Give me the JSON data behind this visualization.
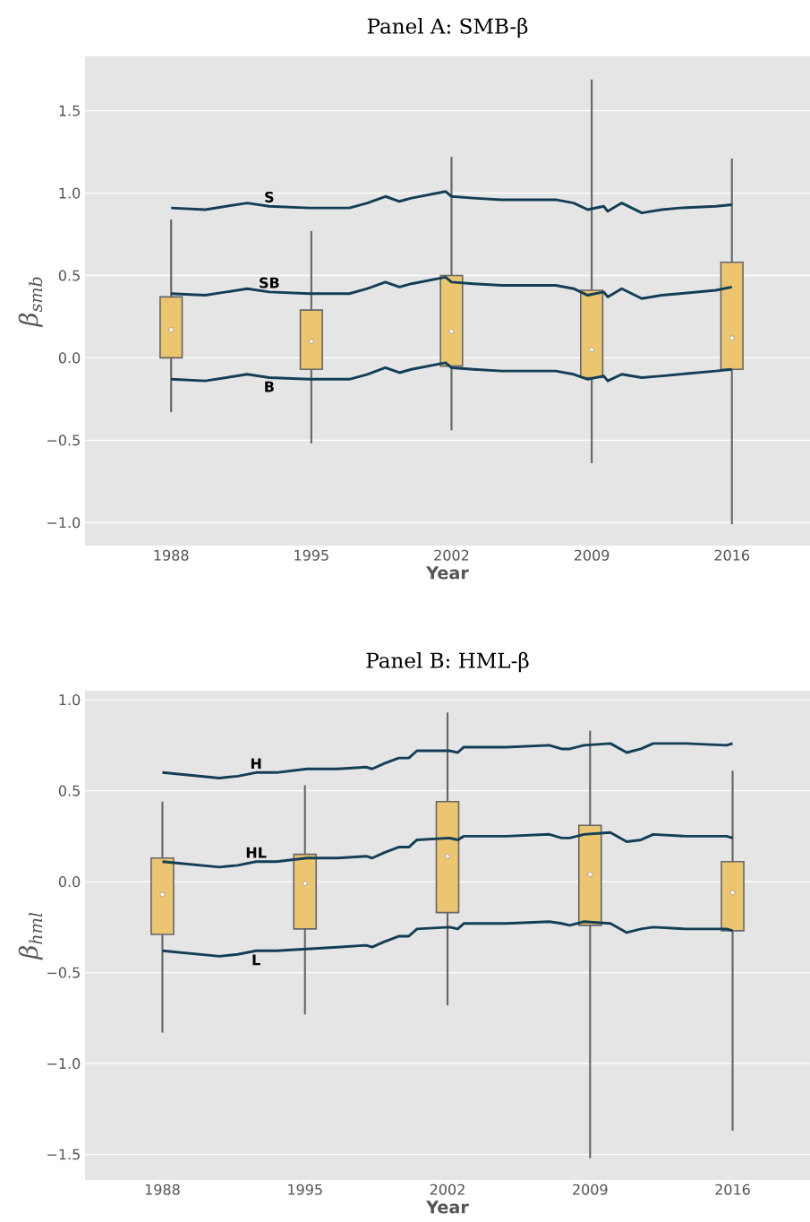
{
  "chart_data": [
    {
      "type": "box",
      "title": "Panel A: SMB-β",
      "xlabel": "Year",
      "ylabel": "β$_{smb}$",
      "xlim": [
        1983.7,
        2019.9
      ],
      "ylim": [
        -1.14,
        1.83
      ],
      "xticks": [
        1988,
        1995,
        2002,
        2009,
        2016
      ],
      "yticks": [
        {
          "value": -1.0,
          "label": "−1.0"
        },
        {
          "value": -0.5,
          "label": "−0.5"
        },
        {
          "value": 0.0,
          "label": "0.0"
        },
        {
          "value": 0.5,
          "label": "0.5"
        },
        {
          "value": 1.0,
          "label": "1.0"
        },
        {
          "value": 1.5,
          "label": "1.5"
        }
      ],
      "grid": "y",
      "series": [
        {
          "color": "#ecc571",
          "x": [
            1988,
            1995,
            2002,
            2009,
            2016
          ],
          "boxes": [
            {
              "low": -0.33,
              "q1": 0.0,
              "median": 0.17,
              "q3": 0.37,
              "high": 0.84
            },
            {
              "low": -0.52,
              "q1": -0.07,
              "median": 0.1,
              "q3": 0.29,
              "high": 0.77
            },
            {
              "low": -0.44,
              "q1": -0.05,
              "median": 0.16,
              "q3": 0.5,
              "high": 1.22
            },
            {
              "low": -0.64,
              "q1": -0.12,
              "median": 0.05,
              "q3": 0.41,
              "high": 1.69
            },
            {
              "low": -1.01,
              "q1": -0.07,
              "median": 0.12,
              "q3": 0.58,
              "high": 1.21
            }
          ]
        },
        {
          "type": "line",
          "name": "S",
          "color": "#133e55",
          "x": [
            1988,
            1989.7,
            1991.8,
            1992.9,
            1994.9,
            1996.9,
            1997.8,
            1998.7,
            1999.4,
            2000.0,
            2001.7,
            2002.0,
            2003.1,
            2004.5,
            2006.3,
            2007.2,
            2008.1,
            2008.8,
            2009.6,
            2009.8,
            2010.5,
            2011.5,
            2012.5,
            2013.4,
            2015.2,
            2016
          ],
          "values": [
            0.91,
            0.9,
            0.94,
            0.92,
            0.91,
            0.91,
            0.94,
            0.98,
            0.95,
            0.97,
            1.01,
            0.98,
            0.97,
            0.96,
            0.96,
            0.96,
            0.94,
            0.9,
            0.92,
            0.89,
            0.94,
            0.88,
            0.9,
            0.91,
            0.92,
            0.93
          ]
        },
        {
          "type": "line",
          "name": "SB",
          "color": "#133e55",
          "x": [
            1988,
            1989.7,
            1991.8,
            1992.9,
            1994.9,
            1996.9,
            1997.8,
            1998.7,
            1999.4,
            2000.0,
            2001.7,
            2002.0,
            2003.1,
            2004.5,
            2006.3,
            2007.2,
            2008.1,
            2008.8,
            2009.6,
            2009.8,
            2010.5,
            2011.5,
            2012.5,
            2013.4,
            2015.2,
            2016
          ],
          "values": [
            0.39,
            0.38,
            0.42,
            0.4,
            0.39,
            0.39,
            0.42,
            0.46,
            0.43,
            0.45,
            0.49,
            0.46,
            0.45,
            0.44,
            0.44,
            0.44,
            0.42,
            0.38,
            0.4,
            0.37,
            0.42,
            0.36,
            0.38,
            0.39,
            0.41,
            0.43
          ]
        },
        {
          "type": "line",
          "name": "B",
          "color": "#133e55",
          "x": [
            1988,
            1989.7,
            1991.8,
            1992.9,
            1994.9,
            1996.9,
            1997.8,
            1998.7,
            1999.4,
            2000.0,
            2001.7,
            2002.0,
            2003.1,
            2004.5,
            2006.3,
            2007.2,
            2008.1,
            2008.8,
            2009.6,
            2009.8,
            2010.5,
            2011.5,
            2012.5,
            2013.4,
            2015.2,
            2016
          ],
          "values": [
            -0.13,
            -0.14,
            -0.1,
            -0.12,
            -0.13,
            -0.13,
            -0.1,
            -0.06,
            -0.09,
            -0.07,
            -0.03,
            -0.06,
            -0.07,
            -0.08,
            -0.08,
            -0.08,
            -0.1,
            -0.13,
            -0.11,
            -0.14,
            -0.1,
            -0.12,
            -0.11,
            -0.1,
            -0.08,
            -0.07
          ]
        }
      ]
    },
    {
      "type": "box",
      "title": "Panel B: HML-β",
      "xlabel": "Year",
      "ylabel": "β$_{hml}$",
      "xlim": [
        1984.2,
        2019.8
      ],
      "ylim": [
        -1.64,
        1.05
      ],
      "xticks": [
        1988,
        1995,
        2002,
        2009,
        2016
      ],
      "yticks": [
        {
          "value": -1.5,
          "label": "−1.5"
        },
        {
          "value": -1.0,
          "label": "−1.0"
        },
        {
          "value": -0.5,
          "label": "−0.5"
        },
        {
          "value": 0.0,
          "label": "0.0"
        },
        {
          "value": 0.5,
          "label": "0.5"
        },
        {
          "value": 1.0,
          "label": "1.0"
        }
      ],
      "grid": "y",
      "series": [
        {
          "color": "#ecc571",
          "x": [
            1988,
            1995,
            2002,
            2009,
            2016
          ],
          "boxes": [
            {
              "low": -0.83,
              "q1": -0.29,
              "median": -0.07,
              "q3": 0.13,
              "high": 0.44
            },
            {
              "low": -0.73,
              "q1": -0.26,
              "median": -0.01,
              "q3": 0.15,
              "high": 0.53
            },
            {
              "low": -0.68,
              "q1": -0.17,
              "median": 0.14,
              "q3": 0.44,
              "high": 0.93
            },
            {
              "low": -1.52,
              "q1": -0.24,
              "median": 0.04,
              "q3": 0.31,
              "high": 0.83
            },
            {
              "low": -1.37,
              "q1": -0.27,
              "median": -0.06,
              "q3": 0.11,
              "high": 0.61
            }
          ]
        },
        {
          "type": "line",
          "name": "H",
          "color": "#133e55",
          "x": [
            1988,
            1990.8,
            1991.7,
            1992.6,
            1993.6,
            1995.1,
            1996.6,
            1998.0,
            1998.3,
            1998.9,
            1999.6,
            2000.1,
            2000.5,
            2002.1,
            2002.5,
            2002.8,
            2004.9,
            2007.0,
            2007.6,
            2008.0,
            2008.7,
            2010.0,
            2010.8,
            2011.5,
            2012.1,
            2013.7,
            2015.7,
            2016
          ],
          "values": [
            0.6,
            0.57,
            0.58,
            0.6,
            0.6,
            0.62,
            0.62,
            0.63,
            0.62,
            0.65,
            0.68,
            0.68,
            0.72,
            0.72,
            0.71,
            0.74,
            0.74,
            0.75,
            0.73,
            0.73,
            0.75,
            0.76,
            0.71,
            0.73,
            0.76,
            0.76,
            0.75,
            0.76
          ]
        },
        {
          "type": "line",
          "name": "HL",
          "color": "#133e55",
          "x": [
            1988,
            1990.8,
            1991.7,
            1992.6,
            1993.6,
            1995.1,
            1996.6,
            1998.0,
            1998.3,
            1998.9,
            1999.6,
            2000.1,
            2000.5,
            2002.1,
            2002.5,
            2002.8,
            2004.9,
            2007.0,
            2007.6,
            2008.0,
            2008.7,
            2010.0,
            2010.8,
            2011.5,
            2012.1,
            2013.7,
            2015.7,
            2016
          ],
          "values": [
            0.11,
            0.08,
            0.09,
            0.11,
            0.11,
            0.13,
            0.13,
            0.14,
            0.13,
            0.16,
            0.19,
            0.19,
            0.23,
            0.24,
            0.23,
            0.25,
            0.25,
            0.26,
            0.24,
            0.24,
            0.26,
            0.27,
            0.22,
            0.23,
            0.26,
            0.25,
            0.25,
            0.24
          ]
        },
        {
          "type": "line",
          "name": "L",
          "color": "#133e55",
          "x": [
            1988,
            1990.8,
            1991.7,
            1992.6,
            1993.6,
            1995.1,
            1996.6,
            1998.0,
            1998.3,
            1998.9,
            1999.6,
            2000.1,
            2000.5,
            2002.1,
            2002.5,
            2002.8,
            2004.9,
            2007.0,
            2007.6,
            2008.0,
            2008.7,
            2010.0,
            2010.8,
            2011.5,
            2012.1,
            2013.7,
            2015.7,
            2016
          ],
          "values": [
            -0.38,
            -0.41,
            -0.4,
            -0.38,
            -0.38,
            -0.37,
            -0.36,
            -0.35,
            -0.36,
            -0.33,
            -0.3,
            -0.3,
            -0.26,
            -0.25,
            -0.26,
            -0.23,
            -0.23,
            -0.22,
            -0.23,
            -0.24,
            -0.22,
            -0.23,
            -0.28,
            -0.26,
            -0.25,
            -0.26,
            -0.26,
            -0.27
          ]
        }
      ]
    }
  ]
}
